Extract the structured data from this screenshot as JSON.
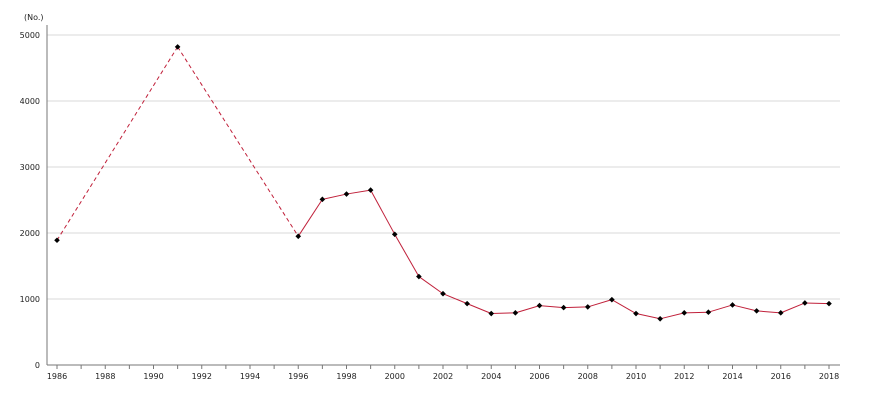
{
  "chart_data": {
    "type": "line",
    "unit_label": "(No.)",
    "x": [
      1986,
      1991,
      1996,
      1997,
      1998,
      1999,
      2000,
      2001,
      2002,
      2003,
      2004,
      2005,
      2006,
      2007,
      2008,
      2009,
      2010,
      2011,
      2012,
      2013,
      2014,
      2015,
      2016,
      2017,
      2018
    ],
    "values": [
      1890,
      4820,
      1950,
      2510,
      2590,
      2650,
      1980,
      1340,
      1080,
      930,
      780,
      790,
      900,
      870,
      880,
      990,
      780,
      700,
      790,
      800,
      910,
      820,
      790,
      940,
      930
    ],
    "dashed_segments": [
      [
        1986,
        1991
      ],
      [
        1991,
        1996
      ]
    ],
    "xlim": [
      1986,
      2018
    ],
    "ylim": [
      0,
      5000
    ],
    "x_ticks": [
      1986,
      1988,
      1990,
      1992,
      1994,
      1996,
      1998,
      2000,
      2002,
      2004,
      2006,
      2008,
      2010,
      2012,
      2014,
      2016,
      2018
    ],
    "y_ticks": [
      0,
      1000,
      2000,
      3000,
      4000,
      5000
    ],
    "grid": "horizontal",
    "line_color": "#c0203a",
    "marker_color": "#000000",
    "grid_color": "#d9d9d9",
    "axis_color": "#777777"
  }
}
